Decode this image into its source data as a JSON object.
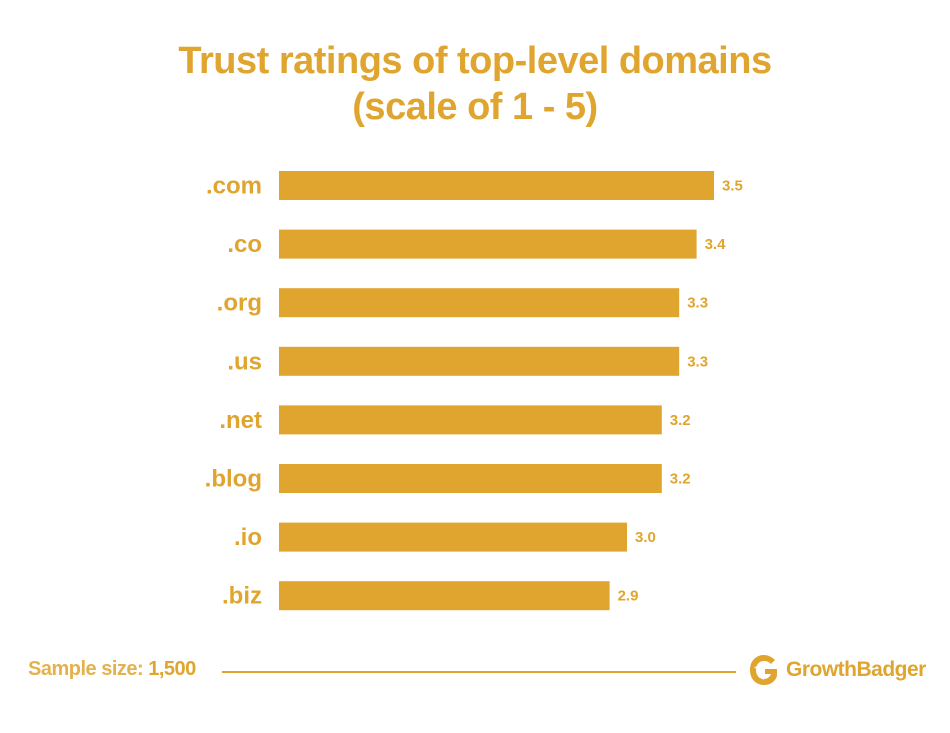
{
  "chart_data": {
    "type": "bar",
    "orientation": "horizontal",
    "title": "Trust ratings of top-level domains",
    "subtitle": "(scale of 1 - 5)",
    "categories": [
      ".com",
      ".co",
      ".org",
      ".us",
      ".net",
      ".blog",
      ".io",
      ".biz"
    ],
    "values": [
      3.5,
      3.4,
      3.3,
      3.3,
      3.2,
      3.2,
      3.0,
      2.9
    ],
    "value_labels": [
      "3.5",
      "3.4",
      "3.3",
      "3.3",
      "3.2",
      "3.2",
      "3.0",
      "2.9"
    ],
    "xlim": [
      1,
      5
    ],
    "grid": false,
    "bar_color": "#e0a52e",
    "text_color": "#e0a52e"
  },
  "footer": {
    "sample_label": "Sample size:",
    "sample_value": "1,500"
  },
  "brand": {
    "name": "GrowthBadger",
    "icon": "growthbadger-logo-icon"
  }
}
